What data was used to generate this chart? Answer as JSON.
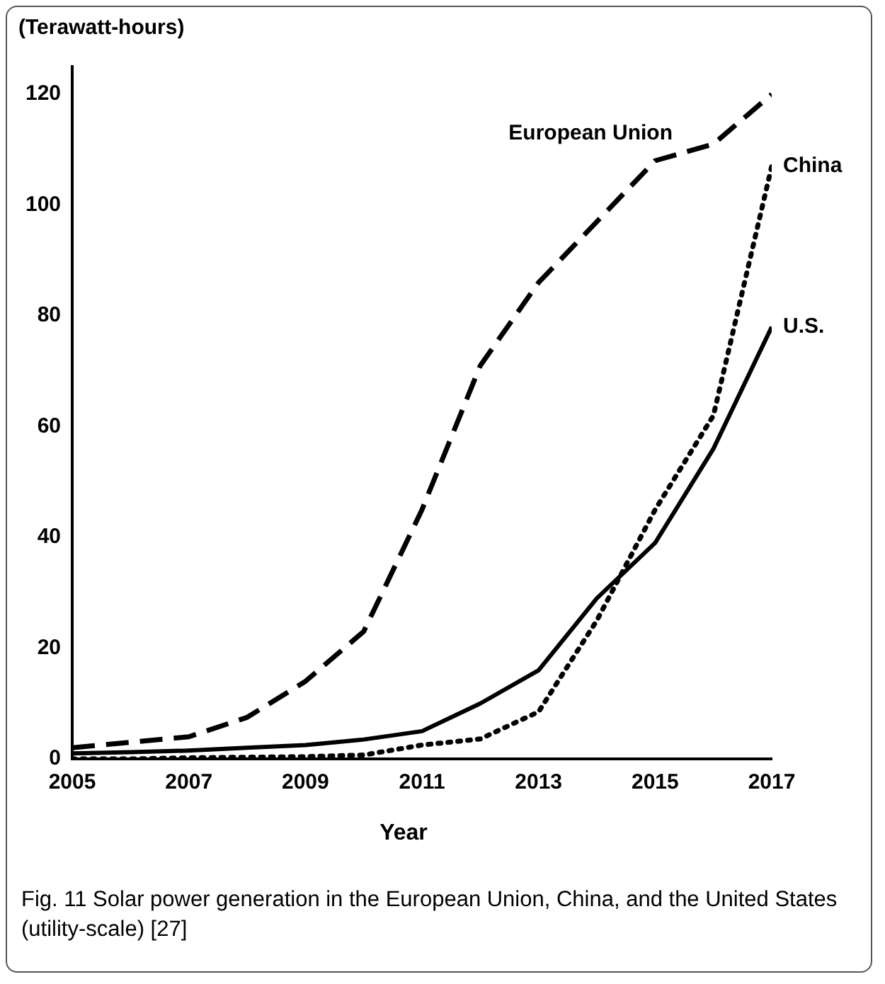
{
  "chart_data": {
    "type": "line",
    "ylabel": "(Terawatt-hours)",
    "xlabel": "Year",
    "x": [
      2005,
      2006,
      2007,
      2008,
      2009,
      2010,
      2011,
      2012,
      2013,
      2014,
      2015,
      2016,
      2017
    ],
    "xlim": [
      2005,
      2017
    ],
    "xticks": [
      2005,
      2007,
      2009,
      2011,
      2013,
      2015,
      2017
    ],
    "ylim": [
      0,
      125
    ],
    "yticks": [
      0,
      20,
      40,
      60,
      80,
      100,
      120
    ],
    "grid": false,
    "legend": false,
    "marker": "none",
    "series": [
      {
        "name": "European Union",
        "color": "#000000",
        "line_style": "dashed",
        "values": [
          2,
          3,
          4,
          7.5,
          14,
          23,
          45,
          71,
          86,
          97,
          108,
          111,
          120
        ]
      },
      {
        "name": "China",
        "color": "#000000",
        "line_style": "dotted",
        "values": [
          0,
          0,
          0.2,
          0.3,
          0.4,
          0.7,
          2.5,
          3.6,
          8.5,
          25,
          45,
          62,
          107
        ]
      },
      {
        "name": "U.S.",
        "color": "#000000",
        "line_style": "solid",
        "values": [
          1,
          1.2,
          1.5,
          2,
          2.5,
          3.5,
          5,
          10,
          16,
          29,
          39,
          56,
          78
        ]
      }
    ],
    "annotations": [
      "Fig. 11 Solar power generation in the European Union, China, and the United States (utility-scale) [27]"
    ]
  }
}
